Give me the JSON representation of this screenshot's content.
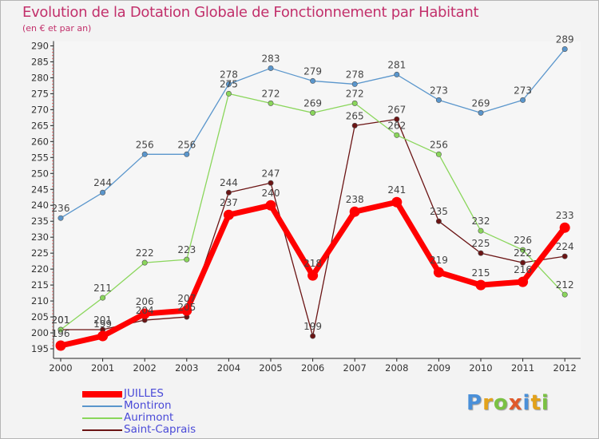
{
  "chart_data": {
    "type": "line",
    "title": "Evolution de la Dotation Globale de Fonctionnement par Habitant",
    "subtitle": "(en € et par an)",
    "xlabel": "",
    "ylabel": "",
    "ylim": [
      195,
      290
    ],
    "yticks": [
      195,
      200,
      205,
      210,
      215,
      220,
      225,
      230,
      235,
      240,
      245,
      250,
      255,
      260,
      265,
      270,
      275,
      280,
      285,
      290
    ],
    "categories": [
      "2000",
      "2001",
      "2002",
      "2003",
      "2004",
      "2005",
      "2006",
      "2007",
      "2008",
      "2009",
      "2010",
      "2011",
      "2012"
    ],
    "series": [
      {
        "name": "Saint-Caprais",
        "color": "#6b1414",
        "values": [
          201,
          201,
          204,
          205,
          244,
          247,
          199,
          265,
          267,
          235,
          225,
          222,
          224
        ]
      },
      {
        "name": "Aurimont",
        "color": "#8ad65b",
        "values": [
          201,
          211,
          222,
          223,
          275,
          272,
          269,
          272,
          262,
          256,
          232,
          226,
          212
        ]
      },
      {
        "name": "Montiron",
        "color": "#5a96cc",
        "values": [
          236,
          244,
          256,
          256,
          278,
          283,
          279,
          278,
          281,
          273,
          269,
          273,
          289
        ]
      },
      {
        "name": "JUILLES",
        "color": "#ff0000",
        "values": [
          196,
          199,
          206,
          207,
          237,
          240,
          218,
          238,
          241,
          219,
          215,
          216,
          233
        ]
      }
    ],
    "legend_order": [
      "JUILLES",
      "Montiron",
      "Aurimont",
      "Saint-Caprais"
    ],
    "legend": "bottom-left",
    "grid": false
  },
  "logo": {
    "letters": [
      "P",
      "r",
      "o",
      "x",
      "i",
      "t",
      "i"
    ],
    "colors": [
      "#4a90d9",
      "#e3a21a",
      "#7ac143",
      "#e05a2b",
      "#4a90d9",
      "#e3a21a",
      "#7ac143"
    ]
  }
}
